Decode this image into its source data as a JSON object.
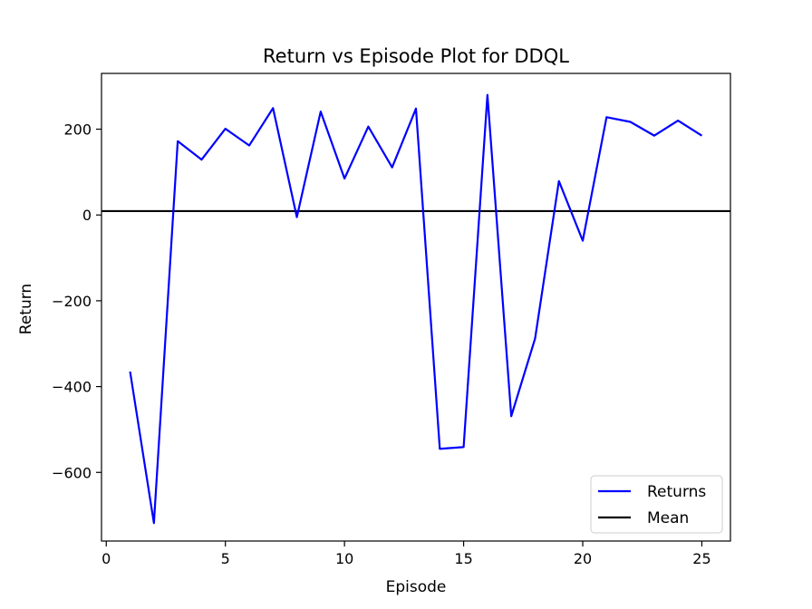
{
  "chart_data": {
    "type": "line",
    "title": "Return vs Episode Plot for DDQL",
    "xlabel": "Episode",
    "ylabel": "Return",
    "xlim": [
      -0.2,
      26.2
    ],
    "ylim": [
      -760,
      330
    ],
    "xticks": [
      0,
      5,
      10,
      15,
      20,
      25
    ],
    "xtick_labels": [
      "0",
      "5",
      "10",
      "15",
      "20",
      "25"
    ],
    "yticks": [
      200,
      0,
      -200,
      -400,
      -600
    ],
    "ytick_labels": [
      "200",
      "0",
      "−200",
      "−400",
      "−600"
    ],
    "grid": false,
    "legend_position": "lower-right",
    "series": [
      {
        "name": "Returns",
        "color": "#0000ff",
        "x": [
          1,
          2,
          3,
          4,
          5,
          6,
          7,
          8,
          9,
          10,
          11,
          12,
          13,
          14,
          15,
          16,
          17,
          18,
          19,
          20,
          21,
          22,
          23,
          24,
          25
        ],
        "y": [
          -365,
          -718,
          172,
          129,
          201,
          162,
          249,
          -5,
          241,
          85,
          206,
          111,
          248,
          -545,
          -541,
          280,
          -469,
          -288,
          79,
          -60,
          228,
          217,
          185,
          220,
          185
        ]
      }
    ],
    "hlines": [
      {
        "name": "Mean",
        "y": 9,
        "color": "#000000"
      }
    ]
  }
}
